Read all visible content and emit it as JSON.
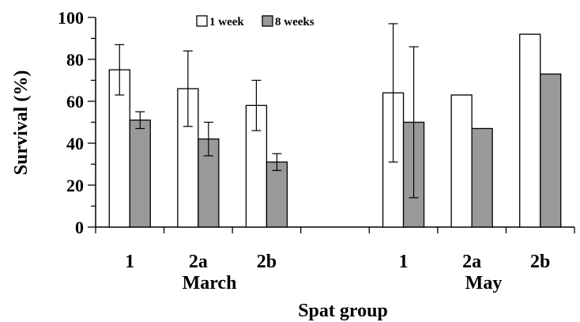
{
  "chart_data": {
    "type": "bar",
    "xlabel": "Spat group",
    "ylabel": "Survival (%)",
    "ylim": [
      0,
      100
    ],
    "yticks": [
      0,
      20,
      40,
      60,
      80,
      100
    ],
    "grid": false,
    "legend_position": "top-center",
    "categories": [
      "1",
      "2a",
      "2b",
      "1",
      "2a",
      "2b"
    ],
    "groups": [
      {
        "label": "March",
        "categories": [
          "1",
          "2a",
          "2b"
        ]
      },
      {
        "label": "May",
        "categories": [
          "1",
          "2a",
          "2b"
        ]
      }
    ],
    "series": [
      {
        "name": "1 week",
        "color": "#ffffff",
        "values": [
          75,
          66,
          58,
          64,
          63,
          92
        ],
        "error": [
          12,
          18,
          12,
          33,
          null,
          null
        ]
      },
      {
        "name": "8 weeks",
        "color": "#999999",
        "values": [
          51,
          42,
          31,
          50,
          47,
          73
        ],
        "error": [
          4,
          8,
          4,
          36,
          null,
          null
        ]
      }
    ]
  }
}
